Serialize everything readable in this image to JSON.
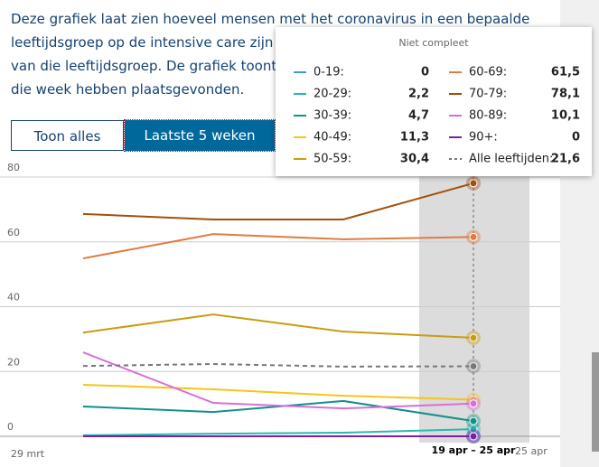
{
  "intro": [
    "Deze grafiek laat zien hoeveel mensen met het coronavirus in een bepaalde",
    "leeftijdsgroep op de intensive care zijn op",
    "van die leeftijdsgroep. De grafiek toont d",
    "die week hebben plaatsgevonden."
  ],
  "buttons": [
    "Toon alles",
    "Laatste 5 weken"
  ],
  "chart_data": {
    "type": "line",
    "tooltip_title": "Niet compleet",
    "categories": [
      null,
      null,
      null,
      "19 apr – 25 apr"
    ],
    "x_axis_labels": [
      "29 mrt",
      "25 apr"
    ],
    "ylim": [
      0,
      80
    ],
    "yticks": [
      0,
      20,
      40,
      60,
      80
    ],
    "grid": true,
    "series": [
      {
        "name": "0-19:",
        "color": "#3f97de",
        "values": [
          0,
          0,
          0,
          0
        ],
        "value_labels": [
          null,
          null,
          null,
          "0"
        ]
      },
      {
        "name": "20-29:",
        "color": "#29b9b3",
        "values": [
          0.3,
          0.8,
          1.1,
          2.2
        ],
        "value_labels": [
          null,
          null,
          null,
          "2,2"
        ]
      },
      {
        "name": "30-39:",
        "color": "#13908a",
        "values": [
          9.2,
          7.5,
          10.9,
          4.7
        ],
        "value_labels": [
          null,
          null,
          null,
          "4,7"
        ]
      },
      {
        "name": "40-49:",
        "color": "#f5c518",
        "values": [
          15.9,
          14.5,
          12.5,
          11.3
        ],
        "value_labels": [
          null,
          null,
          null,
          "11,3"
        ]
      },
      {
        "name": "50-59:",
        "color": "#c99c12",
        "values": [
          32.0,
          37.6,
          32.3,
          30.4
        ],
        "value_labels": [
          null,
          null,
          null,
          "30,4"
        ]
      },
      {
        "name": "60-69:",
        "color": "#e07b3f",
        "values": [
          54.9,
          62.4,
          60.8,
          61.5
        ],
        "value_labels": [
          null,
          null,
          null,
          "61,5"
        ]
      },
      {
        "name": "70-79:",
        "color": "#a24f0c",
        "values": [
          68.6,
          66.9,
          66.9,
          78.1
        ],
        "value_labels": [
          null,
          null,
          null,
          "78,1"
        ]
      },
      {
        "name": "80-89:",
        "color": "#d86fd8",
        "values": [
          25.9,
          10.3,
          8.6,
          10.1
        ],
        "value_labels": [
          null,
          null,
          null,
          "10,1"
        ]
      },
      {
        "name": "90+:",
        "color": "#7a1fa6",
        "values": [
          0,
          0,
          0,
          0
        ],
        "value_labels": [
          null,
          null,
          null,
          "0"
        ]
      },
      {
        "name": "Alle leeftijden:",
        "color": "#777777",
        "dashed": true,
        "values": [
          21.7,
          22.3,
          21.5,
          21.6
        ],
        "value_labels": [
          null,
          null,
          null,
          "21,6"
        ]
      }
    ]
  }
}
